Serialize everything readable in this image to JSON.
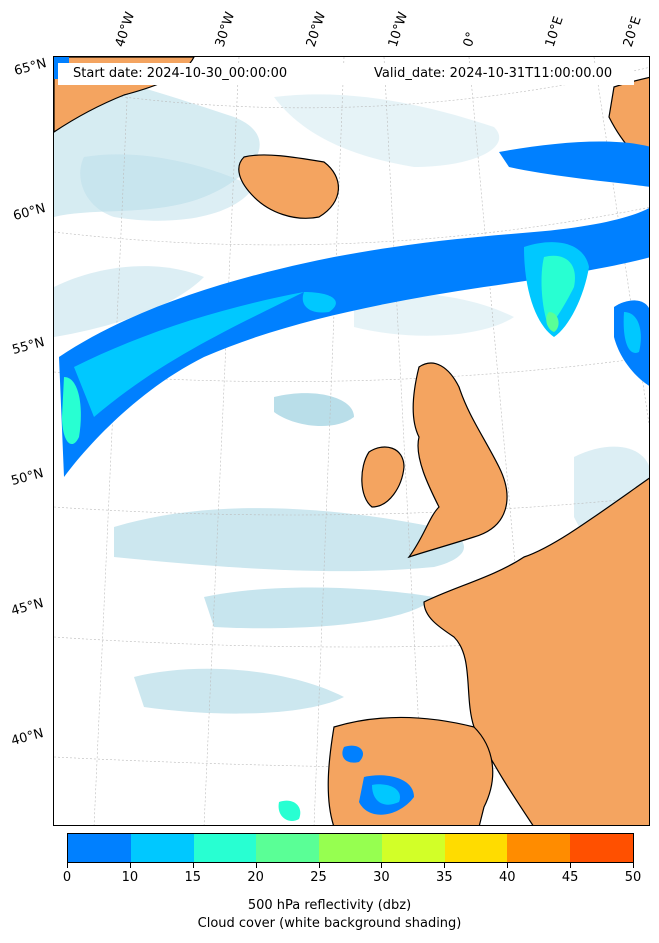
{
  "map": {
    "start_date": "Start date: 2024-10-30_00:00:00",
    "valid_date": "Valid_date: 2024-10-31T11:00:00.00",
    "longitude_labels": [
      "40°W",
      "30°W",
      "20°W",
      "10°W",
      "0°",
      "10°E",
      "20°E"
    ],
    "latitude_labels": [
      "65°N",
      "60°N",
      "55°N",
      "50°N",
      "45°N",
      "40°N"
    ],
    "colors": {
      "land": "#f4a460",
      "cloud": "#add8e6",
      "coastline": "#000000"
    }
  },
  "colorbar": {
    "title": "500 hPa reflectivity (dbz)",
    "subtitle": "Cloud cover (white background shading)",
    "ticks": [
      "0",
      "10",
      "15",
      "20",
      "25",
      "30",
      "35",
      "40",
      "45",
      "50"
    ],
    "colors": [
      "#0080ff",
      "#00c8ff",
      "#28ffd2",
      "#5aff96",
      "#96ff50",
      "#d2ff28",
      "#ffdc00",
      "#ff8c00",
      "#ff5000"
    ]
  }
}
